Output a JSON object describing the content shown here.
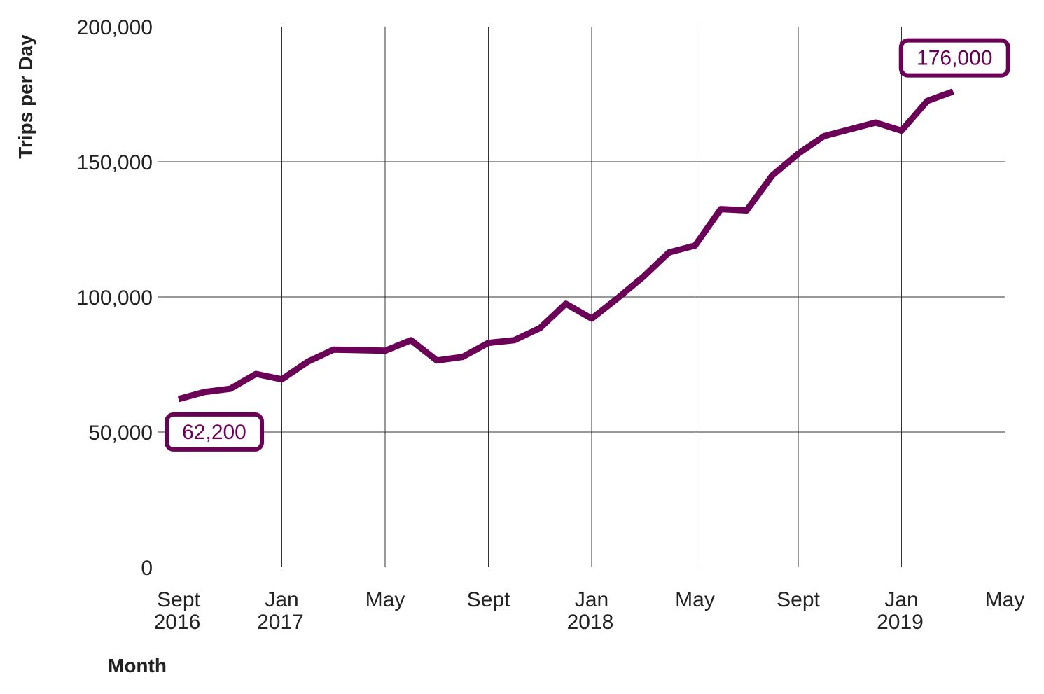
{
  "chart_data": {
    "type": "line",
    "xlabel": "Month",
    "ylabel": "Trips per Day",
    "ylim": [
      0,
      200000
    ],
    "xlim": [
      "2016-09",
      "2019-05"
    ],
    "grid": true,
    "y_ticks": [
      {
        "value": 0,
        "label": "0"
      },
      {
        "value": 50000,
        "label": "50,000"
      },
      {
        "value": 100000,
        "label": "100,000"
      },
      {
        "value": 150000,
        "label": "150,000"
      },
      {
        "value": 200000,
        "label": "200,000"
      }
    ],
    "x_ticks": [
      {
        "month": "2016-09",
        "label": "Sept",
        "year": "2016"
      },
      {
        "month": "2017-01",
        "label": "Jan",
        "year": "2017"
      },
      {
        "month": "2017-05",
        "label": "May",
        "year": ""
      },
      {
        "month": "2017-09",
        "label": "Sept",
        "year": ""
      },
      {
        "month": "2018-01",
        "label": "Jan",
        "year": "2018"
      },
      {
        "month": "2018-05",
        "label": "May",
        "year": ""
      },
      {
        "month": "2018-09",
        "label": "Sept",
        "year": ""
      },
      {
        "month": "2019-01",
        "label": "Jan",
        "year": "2019"
      },
      {
        "month": "2019-05",
        "label": "May",
        "year": ""
      }
    ],
    "series": [
      {
        "color": "#6b0057",
        "points": [
          {
            "x": "2016-09",
            "y": 62200
          },
          {
            "x": "2016-10",
            "y": 64800
          },
          {
            "x": "2016-11",
            "y": 66000
          },
          {
            "x": "2016-12",
            "y": 71500
          },
          {
            "x": "2017-01",
            "y": 69500
          },
          {
            "x": "2017-02",
            "y": 76000
          },
          {
            "x": "2017-03",
            "y": 80500
          },
          {
            "x": "2017-04",
            "y": 80300
          },
          {
            "x": "2017-05",
            "y": 80100
          },
          {
            "x": "2017-06",
            "y": 84000
          },
          {
            "x": "2017-07",
            "y": 76500
          },
          {
            "x": "2017-08",
            "y": 77800
          },
          {
            "x": "2017-09",
            "y": 83000
          },
          {
            "x": "2017-10",
            "y": 84000
          },
          {
            "x": "2017-11",
            "y": 88500
          },
          {
            "x": "2017-12",
            "y": 97500
          },
          {
            "x": "2018-01",
            "y": 92000
          },
          {
            "x": "2018-02",
            "y": 99500
          },
          {
            "x": "2018-03",
            "y": 107500
          },
          {
            "x": "2018-04",
            "y": 116500
          },
          {
            "x": "2018-05",
            "y": 119000
          },
          {
            "x": "2018-06",
            "y": 132500
          },
          {
            "x": "2018-07",
            "y": 132000
          },
          {
            "x": "2018-08",
            "y": 145000
          },
          {
            "x": "2018-09",
            "y": 153000
          },
          {
            "x": "2018-10",
            "y": 159500
          },
          {
            "x": "2018-11",
            "y": 162000
          },
          {
            "x": "2018-12",
            "y": 164500
          },
          {
            "x": "2019-01",
            "y": 161500
          },
          {
            "x": "2019-02",
            "y": 172500
          },
          {
            "x": "2019-03",
            "y": 176000
          }
        ]
      }
    ],
    "annotations": [
      {
        "month": "2016-09",
        "value": 62200,
        "text": "62,200",
        "placement": "below"
      },
      {
        "month": "2019-03",
        "value": 176000,
        "text": "176,000",
        "placement": "above"
      }
    ]
  }
}
